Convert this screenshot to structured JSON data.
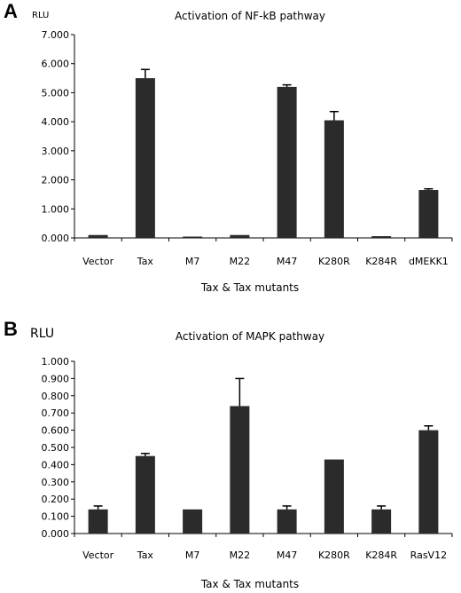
{
  "chart_data": [
    {
      "panel": "A",
      "type": "bar",
      "title": "Activation of NF-kB pathway",
      "ylabel": "RLU",
      "xlabel": "Tax & Tax mutants",
      "ylim": [
        0,
        7
      ],
      "y_ticks": [
        "0.000",
        "1.000",
        "2.000",
        "3.000",
        "4.000",
        "5.000",
        "6.000",
        "7.000"
      ],
      "categories": [
        "Vector",
        "Tax",
        "M7",
        "M22",
        "M47",
        "K280R",
        "K284R",
        "dMEKK1"
      ],
      "values": [
        0.1,
        5.5,
        0.02,
        0.1,
        5.2,
        4.05,
        0.06,
        1.65
      ],
      "errors": [
        0.0,
        0.3,
        0.0,
        0.0,
        0.07,
        0.3,
        0.0,
        0.04
      ],
      "bar_color": "#2b2b2b",
      "grid": false,
      "legend": "none"
    },
    {
      "panel": "B",
      "type": "bar",
      "title": "Activation of MAPK pathway",
      "ylabel": "RLU",
      "xlabel": "Tax & Tax mutants",
      "ylim": [
        0,
        1
      ],
      "y_ticks": [
        "0.000",
        "0.100",
        "0.200",
        "0.300",
        "0.400",
        "0.500",
        "0.600",
        "0.700",
        "0.800",
        "0.900",
        "1.000"
      ],
      "categories": [
        "Vector",
        "Tax",
        "M7",
        "M22",
        "M47",
        "K280R",
        "K284R",
        "RasV12"
      ],
      "values": [
        0.14,
        0.45,
        0.14,
        0.74,
        0.14,
        0.43,
        0.14,
        0.6
      ],
      "errors": [
        0.02,
        0.015,
        0.0,
        0.16,
        0.02,
        0.0,
        0.02,
        0.025
      ],
      "bar_color": "#2b2b2b",
      "grid": false,
      "legend": "none"
    }
  ]
}
